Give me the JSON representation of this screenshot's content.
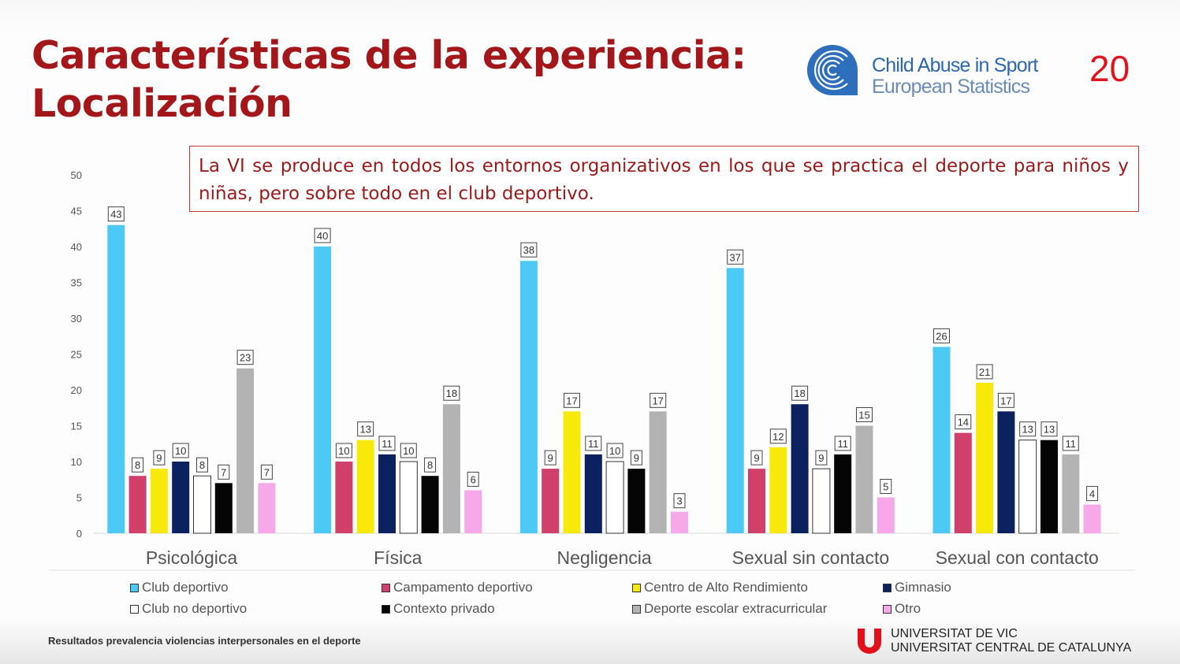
{
  "slide": {
    "title_line1": "Características de la experiencia:",
    "title_line2": "Localización",
    "logo_line1": "Child Abuse in Sport",
    "logo_line2": "European Statistics",
    "page_number": "20",
    "callout": "La VI se produce en todos los entornos organizativos en los que se practica el deporte para niños y niñas, pero sobre todo en el club deportivo.",
    "footer": "Resultados prevalencia violencias interpersonales en el deporte",
    "university_line1": "UNIVERSITAT DE VIC",
    "university_line2": "UNIVERSITAT CENTRAL DE CATALUNYA",
    "brand_color": "#a3161a"
  },
  "chart_data": {
    "type": "bar",
    "categories": [
      "Psicológica",
      "Física",
      "Negligencia",
      "Sexual sin contacto",
      "Sexual con contacto"
    ],
    "ylim": [
      0,
      50
    ],
    "yticks": [
      0,
      5,
      10,
      15,
      20,
      25,
      30,
      35,
      40,
      45,
      50
    ],
    "grid": false,
    "legend_position": "bottom",
    "series": [
      {
        "name": "Club deportivo",
        "color": "#4dc9f6",
        "values": [
          43,
          40,
          38,
          37,
          26
        ]
      },
      {
        "name": "Campamento deportivo",
        "color": "#d0406a",
        "values": [
          8,
          10,
          9,
          9,
          14
        ]
      },
      {
        "name": "Centro de Alto Rendimiento",
        "color": "#f7e90a",
        "values": [
          9,
          13,
          17,
          12,
          21
        ]
      },
      {
        "name": "Gimnasio",
        "color": "#0b2160",
        "values": [
          10,
          11,
          11,
          18,
          17
        ]
      },
      {
        "name": "Club no deportivo",
        "color": "#ffffff",
        "values": [
          8,
          10,
          10,
          9,
          13
        ]
      },
      {
        "name": "Contexto privado",
        "color": "#050505",
        "values": [
          7,
          8,
          9,
          11,
          13
        ]
      },
      {
        "name": "Deporte escolar extracurricular",
        "color": "#b3b3b3",
        "values": [
          23,
          18,
          17,
          15,
          11
        ]
      },
      {
        "name": "Otro",
        "color": "#f7a8e8",
        "values": [
          7,
          6,
          3,
          5,
          4
        ]
      }
    ]
  }
}
